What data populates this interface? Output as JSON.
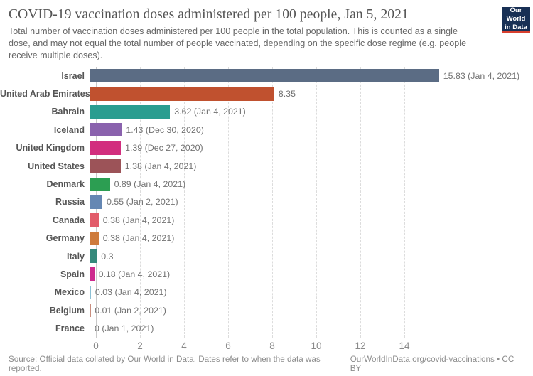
{
  "header": {
    "title": "COVID-19 vaccination doses administered per 100 people, Jan 5, 2021",
    "subtitle": "Total number of vaccination doses administered per 100 people in the total population. This is counted as a single dose, and may not equal the total number of people vaccinated, depending on the specific dose regime (e.g. people receive multiple doses).",
    "logo": {
      "line1": "Our World",
      "line2": "in Data",
      "bg_color": "#183055",
      "stripe_color": "#d8402f"
    }
  },
  "chart_data": {
    "type": "bar",
    "orientation": "horizontal",
    "title": "COVID-19 vaccination doses administered per 100 people, Jan 5, 2021",
    "xlabel": "",
    "ylabel": "",
    "xlim": [
      0,
      15.83
    ],
    "xticks": [
      "0",
      "2",
      "4",
      "6",
      "8",
      "10",
      "12",
      "14"
    ],
    "xtick_values": [
      0,
      2,
      4,
      6,
      8,
      10,
      12,
      14
    ],
    "grid": "vertical-dashed",
    "legend": "none",
    "entries": [
      {
        "country": "Israel",
        "value": 15.83,
        "label": "15.83 (Jan 4, 2021)",
        "color": "#5b6c84"
      },
      {
        "country": "United Arab Emirates",
        "value": 8.35,
        "label": "8.35",
        "color": "#c0512f"
      },
      {
        "country": "Bahrain",
        "value": 3.62,
        "label": "3.62 (Jan 4, 2021)",
        "color": "#2a9d90"
      },
      {
        "country": "Iceland",
        "value": 1.43,
        "label": "1.43 (Dec 30, 2020)",
        "color": "#8a62ad"
      },
      {
        "country": "United Kingdom",
        "value": 1.39,
        "label": "1.39 (Dec 27, 2020)",
        "color": "#d22e7e"
      },
      {
        "country": "United States",
        "value": 1.38,
        "label": "1.38 (Jan 4, 2021)",
        "color": "#9c5358"
      },
      {
        "country": "Denmark",
        "value": 0.89,
        "label": "0.89 (Jan 4, 2021)",
        "color": "#2c9e52"
      },
      {
        "country": "Russia",
        "value": 0.55,
        "label": "0.55 (Jan 2, 2021)",
        "color": "#6587b3"
      },
      {
        "country": "Canada",
        "value": 0.38,
        "label": "0.38 (Jan 4, 2021)",
        "color": "#e25c6a"
      },
      {
        "country": "Germany",
        "value": 0.38,
        "label": "0.38 (Jan 4, 2021)",
        "color": "#ce7b3c"
      },
      {
        "country": "Italy",
        "value": 0.3,
        "label": "0.3",
        "color": "#35897b"
      },
      {
        "country": "Spain",
        "value": 0.18,
        "label": "0.18 (Jan 4, 2021)",
        "color": "#cd2a8e"
      },
      {
        "country": "Mexico",
        "value": 0.03,
        "label": "0.03 (Jan 4, 2021)",
        "color": "#8cc0d4"
      },
      {
        "country": "Belgium",
        "value": 0.01,
        "label": "0.01 (Jan 2, 2021)",
        "color": "#c98d7e"
      },
      {
        "country": "France",
        "value": 0,
        "label": "0 (Jan 1, 2021)",
        "color": null
      }
    ]
  },
  "footer": {
    "source": "Source: Official data collated by Our World in Data. Dates refer to when the data was reported.",
    "attribution": "OurWorldInData.org/covid-vaccinations • CC BY"
  }
}
